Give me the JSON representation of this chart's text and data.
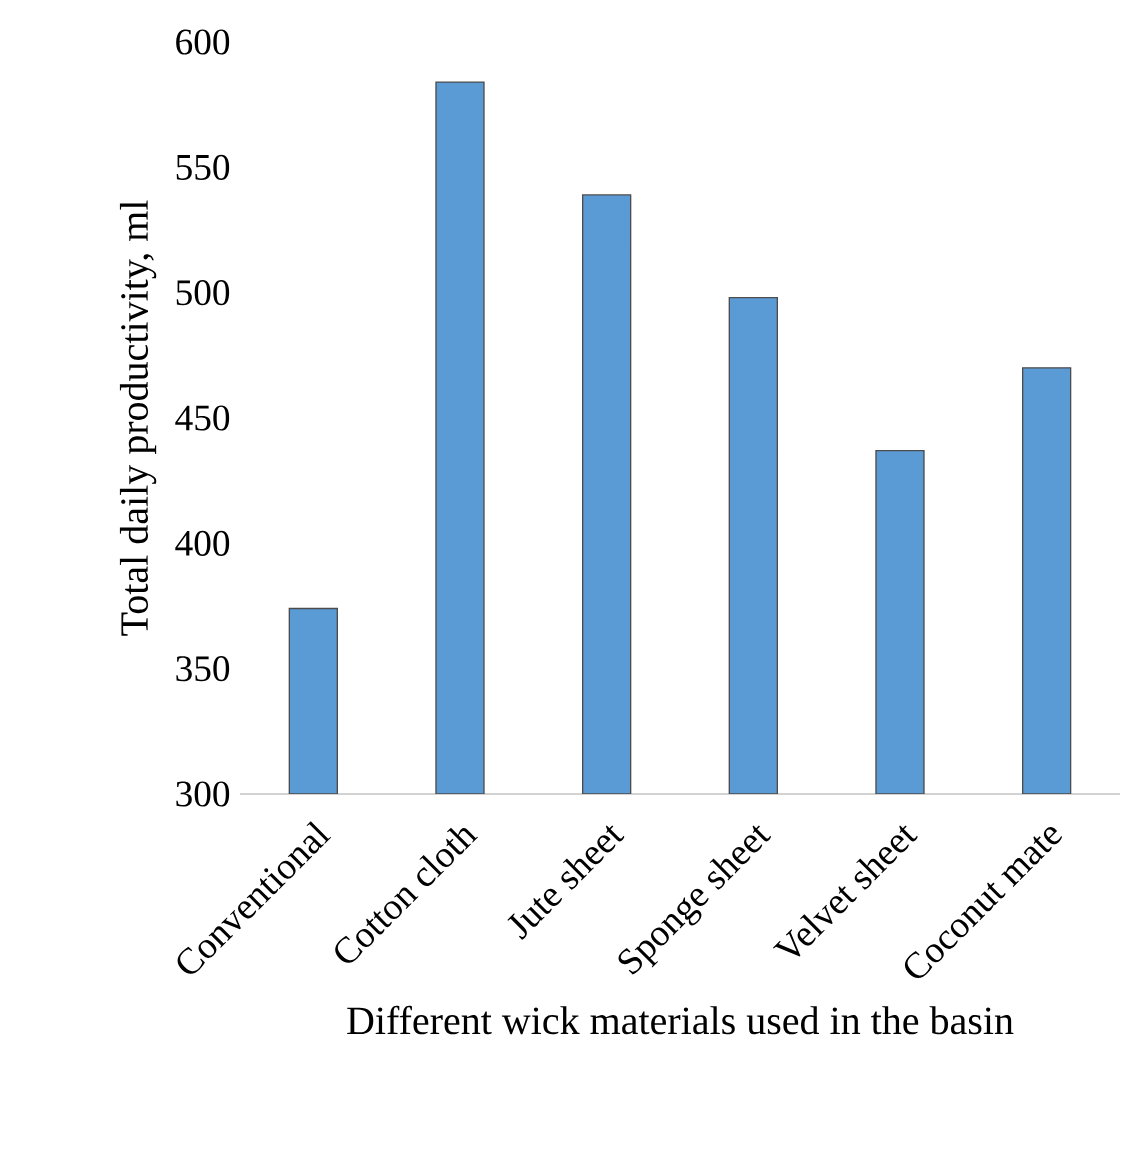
{
  "chart_data": {
    "type": "bar",
    "xlabel": "Different wick materials used  in the basin",
    "ylabel": "Total daily productivity, ml",
    "categories": [
      "Conventional",
      "Cotton cloth",
      "Jute sheet",
      "Sponge sheet",
      "Velvet sheet",
      "Coconut mate"
    ],
    "values": [
      374,
      584,
      539,
      498,
      437,
      470
    ],
    "color": "#5b9bd5",
    "ylim": [
      300,
      600
    ],
    "yticks": [
      300,
      350,
      400,
      450,
      500,
      550,
      600
    ]
  }
}
